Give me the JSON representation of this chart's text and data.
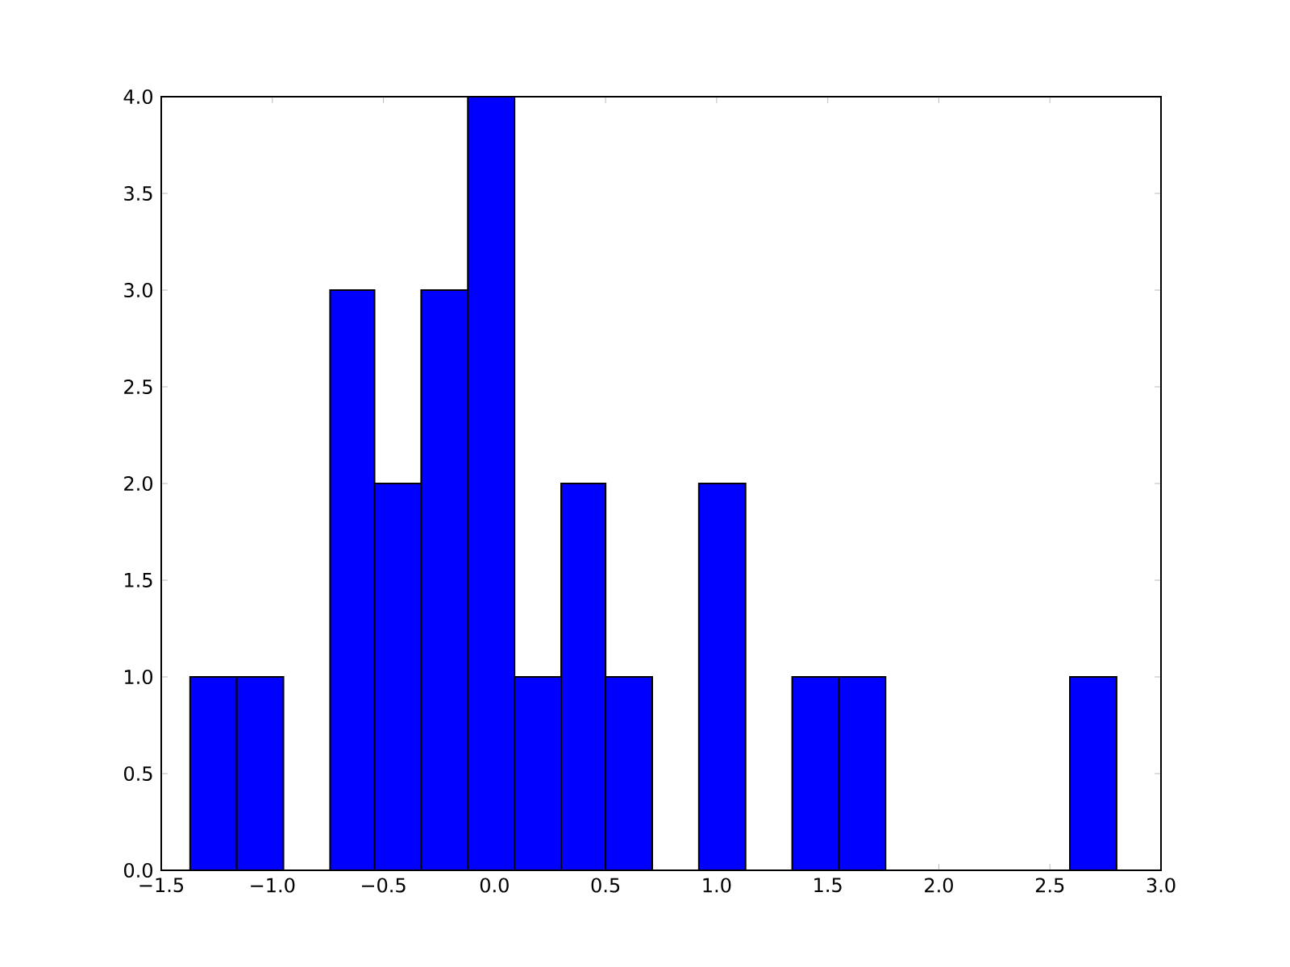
{
  "chart_data": {
    "type": "histogram",
    "color": "#0000ff",
    "bins": [
      -1.37,
      -1.16,
      -0.95,
      -0.74,
      -0.54,
      -0.33,
      -0.12,
      0.09,
      0.3,
      0.5,
      0.71,
      0.92,
      1.13,
      1.34,
      1.55,
      1.76,
      2.59,
      2.8
    ],
    "values": [
      1,
      1,
      0,
      3,
      2,
      3,
      4,
      1,
      2,
      1,
      0,
      2,
      0,
      1,
      1,
      0,
      1
    ],
    "xlim": [
      -1.5,
      3.0
    ],
    "ylim": [
      0,
      4.0
    ],
    "xticks": [
      {
        "value": -1.5,
        "label": "−1.5"
      },
      {
        "value": -1.0,
        "label": "−1.0"
      },
      {
        "value": -0.5,
        "label": "−0.5"
      },
      {
        "value": 0,
        "label": "0.0"
      },
      {
        "value": 0.5,
        "label": "0.5"
      },
      {
        "value": 1.0,
        "label": "1.0"
      },
      {
        "value": 1.5,
        "label": "1.5"
      },
      {
        "value": 2.0,
        "label": "2.0"
      },
      {
        "value": 2.5,
        "label": "2.5"
      },
      {
        "value": 3.0,
        "label": "3.0"
      }
    ],
    "yticks": [
      {
        "value": 0,
        "label": "0.0"
      },
      {
        "value": 0.5,
        "label": "0.5"
      },
      {
        "value": 1.0,
        "label": "1.0"
      },
      {
        "value": 1.5,
        "label": "1.5"
      },
      {
        "value": 2.0,
        "label": "2.0"
      },
      {
        "value": 2.5,
        "label": "2.5"
      },
      {
        "value": 3.0,
        "label": "3.0"
      },
      {
        "value": 3.5,
        "label": "3.5"
      },
      {
        "value": 4.0,
        "label": "4.0"
      }
    ]
  }
}
